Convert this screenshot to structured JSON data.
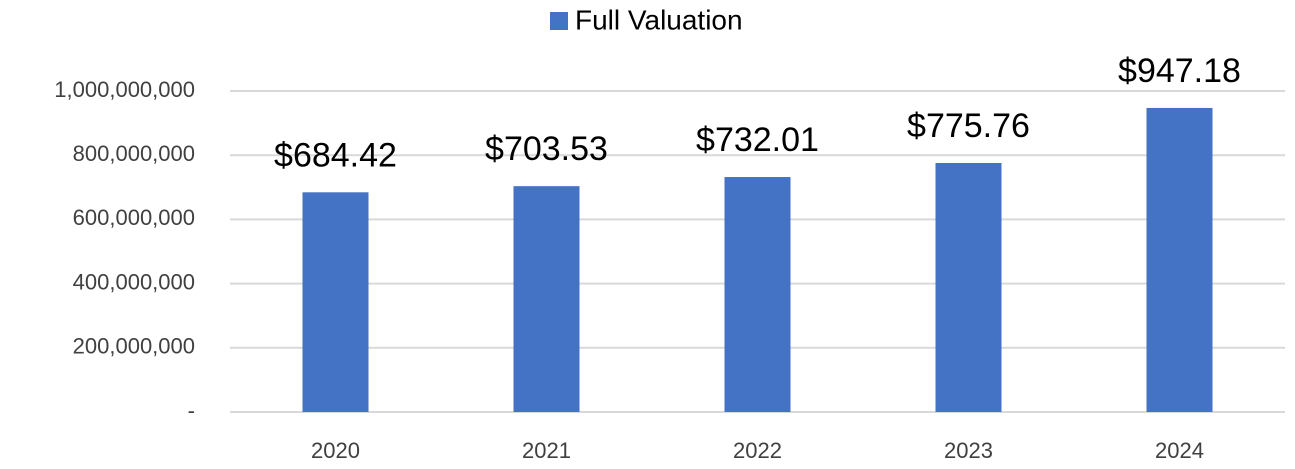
{
  "chart_data": {
    "type": "bar",
    "categories": [
      "2020",
      "2021",
      "2022",
      "2023",
      "2024"
    ],
    "series": [
      {
        "name": "Full Valuation",
        "color": "#4472c4",
        "values": [
          684420000,
          703530000,
          732010000,
          775760000,
          947180000
        ],
        "value_labels": [
          "$684.42",
          "$703.53",
          "$732.01",
          "$775.76",
          "$947.18"
        ]
      }
    ],
    "ylim": [
      0,
      1000000000
    ],
    "yticks": [
      {
        "value": 0,
        "label": "-"
      },
      {
        "value": 200000000,
        "label": "200,000,000"
      },
      {
        "value": 400000000,
        "label": "400,000,000"
      },
      {
        "value": 600000000,
        "label": "600,000,000"
      },
      {
        "value": 800000000,
        "label": "800,000,000"
      },
      {
        "value": 1000000000,
        "label": "1,000,000,000"
      }
    ],
    "grid": true,
    "legend": "top"
  }
}
